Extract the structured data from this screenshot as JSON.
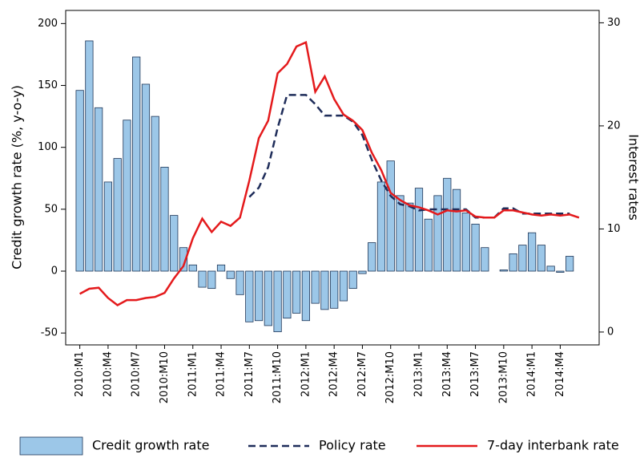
{
  "chart_data": {
    "type": "bar",
    "categories": [
      "2010:M1",
      null,
      null,
      "2010:M4",
      null,
      null,
      "2010:M7",
      null,
      null,
      "2010:M10",
      null,
      null,
      "2011:M1",
      null,
      null,
      "2011:M4",
      null,
      null,
      "2011:M7",
      null,
      null,
      "2011:M10",
      null,
      null,
      "2012:M1",
      null,
      null,
      "2012:M4",
      null,
      null,
      "2012:M7",
      null,
      null,
      "2012:M10",
      null,
      null,
      "2013:M1",
      null,
      null,
      "2013:M4",
      null,
      null,
      "2013:M7",
      null,
      null,
      "2013:M10",
      null,
      null,
      "2014:M1",
      null,
      null,
      "2014:M4",
      null,
      null
    ],
    "y_label": "Credit growth rate (%, y-o-y)",
    "y2_label": "Interest rates",
    "ylim": [
      -59.6,
      210.6
    ],
    "yticks": [
      -50,
      0,
      50,
      100,
      150,
      200
    ],
    "y2lim": [
      -1.25,
      31.2
    ],
    "y2ticks": [
      0,
      10,
      20,
      30
    ],
    "legend": "bottom",
    "series": [
      {
        "name": "Credit growth rate",
        "type": "bar",
        "color": "#9cc7e8",
        "values": [
          146,
          186,
          132,
          72,
          91,
          122,
          173,
          151,
          125,
          84,
          45,
          19,
          5,
          -13,
          -14,
          5,
          -6,
          -19,
          -41,
          -40,
          -44,
          -49,
          -38,
          -34,
          -40,
          -26,
          -31,
          -30,
          -24,
          -14,
          -2,
          23,
          72,
          89,
          61,
          55,
          67,
          42,
          61,
          75,
          66,
          47,
          38,
          19,
          0,
          1,
          14,
          21,
          31,
          21,
          4,
          -1,
          12,
          null
        ]
      },
      {
        "name": "Policy rate",
        "type": "line",
        "dashed": true,
        "axis": "y2",
        "color": "#1f2d5a",
        "values": [
          null,
          null,
          null,
          null,
          null,
          null,
          null,
          null,
          null,
          null,
          null,
          null,
          null,
          null,
          null,
          null,
          null,
          null,
          13.1,
          14.0,
          16.0,
          19.8,
          23.0,
          23.0,
          23.0,
          22.1,
          21.0,
          21.0,
          21.0,
          20.4,
          19.1,
          16.7,
          14.7,
          13.2,
          12.4,
          12.2,
          11.8,
          11.9,
          11.9,
          11.9,
          11.9,
          11.9,
          11.1,
          11.1,
          11.1,
          12.0,
          12.0,
          11.5,
          11.5,
          11.5,
          11.5,
          11.5,
          11.5,
          null
        ]
      },
      {
        "name": "7-day interbank rate",
        "type": "line",
        "dashed": false,
        "axis": "y2",
        "color": "#e41a1c",
        "values": [
          3.7,
          4.2,
          4.3,
          3.3,
          2.6,
          3.1,
          3.1,
          3.3,
          3.4,
          3.8,
          5.2,
          6.4,
          9.1,
          11.0,
          9.7,
          10.7,
          10.3,
          11.1,
          14.7,
          18.8,
          20.5,
          25.1,
          26.0,
          27.7,
          28.1,
          23.3,
          24.8,
          22.6,
          21.1,
          20.5,
          19.6,
          17.4,
          15.7,
          13.5,
          12.8,
          12.3,
          12.1,
          11.8,
          11.4,
          11.8,
          11.7,
          11.8,
          11.2,
          11.1,
          11.1,
          11.8,
          11.8,
          11.6,
          11.4,
          11.3,
          11.4,
          11.3,
          11.4,
          11.1
        ]
      }
    ]
  }
}
